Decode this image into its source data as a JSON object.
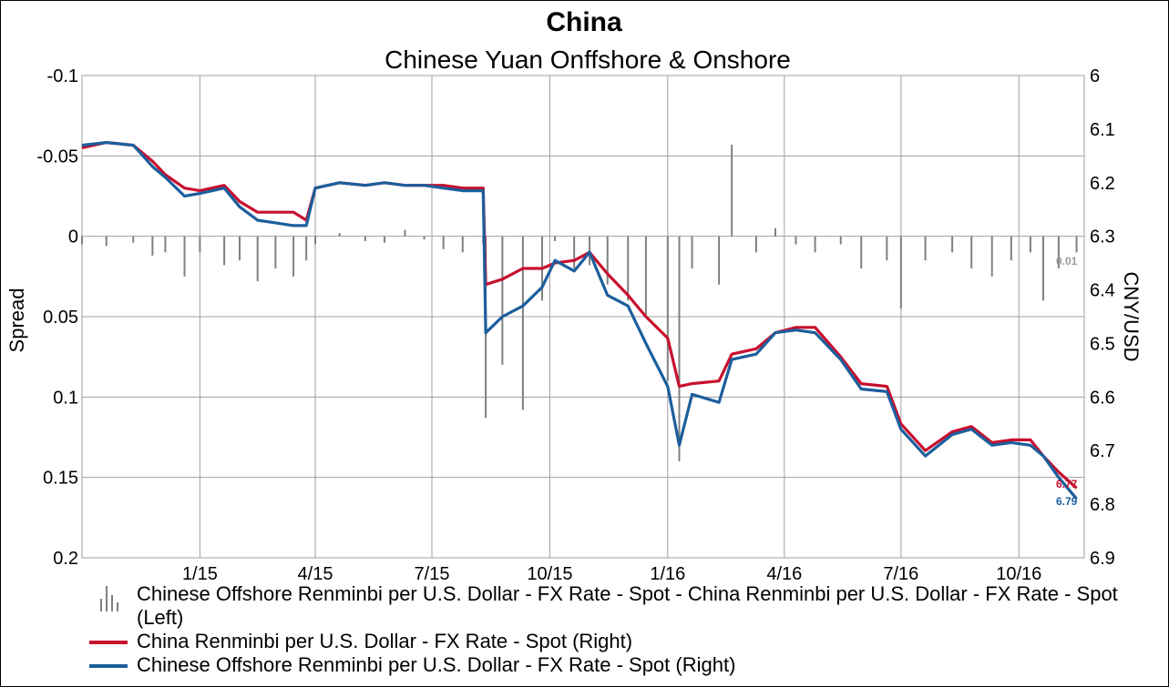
{
  "title": "China",
  "subtitle": "Chinese Yuan Onffshore & Onshore",
  "left_axis_label": "Spread",
  "right_axis_label": "CNY/USD",
  "colors": {
    "onshore": "#c8102e",
    "offshore": "#1c5e9c",
    "spread": "#808080",
    "grid": "#a0a0a0"
  },
  "end_labels": {
    "onshore": "6.77",
    "offshore": "6.79",
    "spread": "0.01"
  },
  "legend": {
    "spread": "Chinese Offshore Renminbi per U.S. Dollar - FX Rate - Spot - China Renminbi per U.S. Dollar - FX Rate - Spot  (Left)",
    "onshore": "China Renminbi per U.S. Dollar - FX Rate - Spot  (Right)",
    "offshore": "Chinese Offshore Renminbi per U.S. Dollar - FX Rate - Spot  (Right)"
  },
  "chart_data": {
    "type": "line",
    "x_ticks": [
      "1/15",
      "4/15",
      "7/15",
      "10/15",
      "1/16",
      "4/16",
      "7/16",
      "10/16"
    ],
    "x_tick_dates": [
      "2015-01-01",
      "2015-04-01",
      "2015-07-01",
      "2015-10-01",
      "2016-01-01",
      "2016-04-01",
      "2016-07-01",
      "2016-10-01"
    ],
    "x_range": [
      "2014-10-01",
      "2016-11-21"
    ],
    "left_axis": {
      "label": "Spread",
      "ticks": [
        "-0.1",
        "-0.05",
        "0",
        "0.05",
        "0.1",
        "0.15",
        "0.2"
      ],
      "range": [
        -0.1,
        0.2
      ],
      "inverted": true
    },
    "right_axis": {
      "label": "CNY/USD",
      "ticks": [
        "6",
        "6.1",
        "6.2",
        "6.3",
        "6.4",
        "6.5",
        "6.6",
        "6.7",
        "6.8",
        "6.9"
      ],
      "range": [
        6.0,
        6.9
      ],
      "inverted": true
    },
    "grid": true,
    "legend_position": "bottom",
    "series": [
      {
        "name": "China Renminbi per U.S. Dollar - FX Rate - Spot  (Right)",
        "axis": "right",
        "points": [
          [
            "2014-10-01",
            6.135
          ],
          [
            "2014-10-20",
            6.125
          ],
          [
            "2014-11-10",
            6.13
          ],
          [
            "2014-11-25",
            6.16
          ],
          [
            "2014-12-05",
            6.185
          ],
          [
            "2014-12-20",
            6.21
          ],
          [
            "2015-01-01",
            6.215
          ],
          [
            "2015-01-20",
            6.205
          ],
          [
            "2015-02-01",
            6.235
          ],
          [
            "2015-02-15",
            6.255
          ],
          [
            "2015-03-01",
            6.255
          ],
          [
            "2015-03-15",
            6.255
          ],
          [
            "2015-03-25",
            6.27
          ],
          [
            "2015-04-01",
            6.21
          ],
          [
            "2015-04-20",
            6.2
          ],
          [
            "2015-05-10",
            6.205
          ],
          [
            "2015-05-25",
            6.2
          ],
          [
            "2015-06-10",
            6.205
          ],
          [
            "2015-06-25",
            6.205
          ],
          [
            "2015-07-10",
            6.205
          ],
          [
            "2015-07-25",
            6.21
          ],
          [
            "2015-08-10",
            6.21
          ],
          [
            "2015-08-12",
            6.39
          ],
          [
            "2015-08-25",
            6.38
          ],
          [
            "2015-09-10",
            6.36
          ],
          [
            "2015-09-25",
            6.36
          ],
          [
            "2015-10-05",
            6.35
          ],
          [
            "2015-10-20",
            6.345
          ],
          [
            "2015-11-01",
            6.33
          ],
          [
            "2015-11-15",
            6.37
          ],
          [
            "2015-12-01",
            6.41
          ],
          [
            "2015-12-15",
            6.45
          ],
          [
            "2016-01-01",
            6.49
          ],
          [
            "2016-01-10",
            6.58
          ],
          [
            "2016-01-20",
            6.575
          ],
          [
            "2016-02-10",
            6.57
          ],
          [
            "2016-02-20",
            6.52
          ],
          [
            "2016-03-10",
            6.51
          ],
          [
            "2016-03-25",
            6.48
          ],
          [
            "2016-04-10",
            6.47
          ],
          [
            "2016-04-25",
            6.47
          ],
          [
            "2016-05-15",
            6.525
          ],
          [
            "2016-05-31",
            6.575
          ],
          [
            "2016-06-20",
            6.58
          ],
          [
            "2016-07-01",
            6.65
          ],
          [
            "2016-07-20",
            6.7
          ],
          [
            "2016-08-10",
            6.665
          ],
          [
            "2016-08-25",
            6.655
          ],
          [
            "2016-09-10",
            6.685
          ],
          [
            "2016-09-25",
            6.68
          ],
          [
            "2016-10-10",
            6.68
          ],
          [
            "2016-10-20",
            6.71
          ],
          [
            "2016-11-01",
            6.74
          ],
          [
            "2016-11-15",
            6.77
          ]
        ]
      },
      {
        "name": "Chinese Offshore Renminbi per U.S. Dollar - FX Rate - Spot  (Right)",
        "axis": "right",
        "points": [
          [
            "2014-10-01",
            6.13
          ],
          [
            "2014-10-20",
            6.125
          ],
          [
            "2014-11-10",
            6.13
          ],
          [
            "2014-11-25",
            6.17
          ],
          [
            "2014-12-05",
            6.19
          ],
          [
            "2014-12-20",
            6.225
          ],
          [
            "2015-01-01",
            6.22
          ],
          [
            "2015-01-20",
            6.21
          ],
          [
            "2015-02-01",
            6.245
          ],
          [
            "2015-02-15",
            6.27
          ],
          [
            "2015-03-01",
            6.275
          ],
          [
            "2015-03-15",
            6.28
          ],
          [
            "2015-03-25",
            6.28
          ],
          [
            "2015-04-01",
            6.21
          ],
          [
            "2015-04-20",
            6.2
          ],
          [
            "2015-05-10",
            6.205
          ],
          [
            "2015-05-25",
            6.2
          ],
          [
            "2015-06-10",
            6.205
          ],
          [
            "2015-06-25",
            6.205
          ],
          [
            "2015-07-10",
            6.21
          ],
          [
            "2015-07-25",
            6.215
          ],
          [
            "2015-08-10",
            6.215
          ],
          [
            "2015-08-12",
            6.48
          ],
          [
            "2015-08-25",
            6.45
          ],
          [
            "2015-09-10",
            6.43
          ],
          [
            "2015-09-25",
            6.395
          ],
          [
            "2015-10-05",
            6.345
          ],
          [
            "2015-10-20",
            6.365
          ],
          [
            "2015-11-01",
            6.33
          ],
          [
            "2015-11-15",
            6.41
          ],
          [
            "2015-12-01",
            6.43
          ],
          [
            "2015-12-15",
            6.5
          ],
          [
            "2016-01-01",
            6.58
          ],
          [
            "2016-01-10",
            6.69
          ],
          [
            "2016-01-20",
            6.595
          ],
          [
            "2016-02-10",
            6.61
          ],
          [
            "2016-02-20",
            6.53
          ],
          [
            "2016-03-10",
            6.52
          ],
          [
            "2016-03-25",
            6.48
          ],
          [
            "2016-04-10",
            6.475
          ],
          [
            "2016-04-25",
            6.48
          ],
          [
            "2016-05-15",
            6.53
          ],
          [
            "2016-05-31",
            6.585
          ],
          [
            "2016-06-20",
            6.59
          ],
          [
            "2016-07-01",
            6.66
          ],
          [
            "2016-07-20",
            6.71
          ],
          [
            "2016-08-10",
            6.67
          ],
          [
            "2016-08-25",
            6.66
          ],
          [
            "2016-09-10",
            6.69
          ],
          [
            "2016-09-25",
            6.685
          ],
          [
            "2016-10-10",
            6.69
          ],
          [
            "2016-10-20",
            6.71
          ],
          [
            "2016-11-01",
            6.75
          ],
          [
            "2016-11-15",
            6.79
          ]
        ]
      },
      {
        "name": "Chinese Offshore Renminbi per U.S. Dollar - FX Rate - Spot - China Renminbi per U.S. Dollar - FX Rate - Spot  (Left)",
        "axis": "left",
        "type": "bar",
        "points": [
          [
            "2014-10-01",
            0.005
          ],
          [
            "2014-10-20",
            0.006
          ],
          [
            "2014-11-10",
            0.004
          ],
          [
            "2014-11-25",
            0.012
          ],
          [
            "2014-12-05",
            0.01
          ],
          [
            "2014-12-20",
            0.025
          ],
          [
            "2015-01-01",
            0.01
          ],
          [
            "2015-01-20",
            0.018
          ],
          [
            "2015-02-01",
            0.015
          ],
          [
            "2015-02-15",
            0.028
          ],
          [
            "2015-03-01",
            0.02
          ],
          [
            "2015-03-15",
            0.025
          ],
          [
            "2015-03-25",
            0.015
          ],
          [
            "2015-04-01",
            0.005
          ],
          [
            "2015-04-20",
            -0.002
          ],
          [
            "2015-05-10",
            0.003
          ],
          [
            "2015-05-25",
            0.004
          ],
          [
            "2015-06-10",
            -0.004
          ],
          [
            "2015-06-25",
            0.002
          ],
          [
            "2015-07-10",
            0.008
          ],
          [
            "2015-07-25",
            0.01
          ],
          [
            "2015-08-10",
            0.005
          ],
          [
            "2015-08-12",
            0.113
          ],
          [
            "2015-08-25",
            0.08
          ],
          [
            "2015-09-10",
            0.108
          ],
          [
            "2015-09-25",
            0.04
          ],
          [
            "2015-10-05",
            0.003
          ],
          [
            "2015-10-20",
            0.02
          ],
          [
            "2015-11-01",
            0.018
          ],
          [
            "2015-11-15",
            0.03
          ],
          [
            "2015-12-01",
            0.04
          ],
          [
            "2015-12-15",
            0.05
          ],
          [
            "2016-01-01",
            0.09
          ],
          [
            "2016-01-10",
            0.14
          ],
          [
            "2016-01-20",
            0.02
          ],
          [
            "2016-02-10",
            0.03
          ],
          [
            "2016-02-20",
            -0.057
          ],
          [
            "2016-03-10",
            0.01
          ],
          [
            "2016-03-25",
            -0.005
          ],
          [
            "2016-04-10",
            0.005
          ],
          [
            "2016-04-25",
            0.01
          ],
          [
            "2016-05-15",
            0.005
          ],
          [
            "2016-05-31",
            0.02
          ],
          [
            "2016-06-20",
            0.015
          ],
          [
            "2016-07-01",
            0.045
          ],
          [
            "2016-07-20",
            0.015
          ],
          [
            "2016-08-10",
            0.01
          ],
          [
            "2016-08-25",
            0.02
          ],
          [
            "2016-09-10",
            0.025
          ],
          [
            "2016-09-25",
            0.015
          ],
          [
            "2016-10-10",
            0.01
          ],
          [
            "2016-10-20",
            0.04
          ],
          [
            "2016-11-01",
            0.02
          ],
          [
            "2016-11-15",
            0.01
          ]
        ]
      }
    ]
  }
}
